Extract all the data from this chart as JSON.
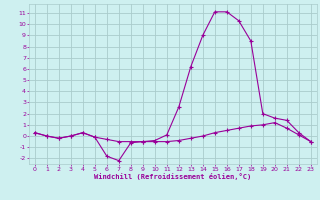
{
  "xlabel": "Windchill (Refroidissement éolien,°C)",
  "background_color": "#cef0f0",
  "grid_color": "#aacccc",
  "line_color": "#990099",
  "xlim": [
    -0.5,
    23.5
  ],
  "ylim": [
    -2.5,
    11.8
  ],
  "yticks": [
    -2,
    -1,
    0,
    1,
    2,
    3,
    4,
    5,
    6,
    7,
    8,
    9,
    10,
    11
  ],
  "xticks": [
    0,
    1,
    2,
    3,
    4,
    5,
    6,
    7,
    8,
    9,
    10,
    11,
    12,
    13,
    14,
    15,
    16,
    17,
    18,
    19,
    20,
    21,
    22,
    23
  ],
  "line1_x": [
    0,
    1,
    2,
    3,
    4,
    5,
    6,
    7,
    8,
    9,
    10,
    11,
    12,
    13,
    14,
    15,
    16,
    17,
    18,
    19,
    20,
    21,
    22,
    23
  ],
  "line1_y": [
    0.3,
    0.0,
    -0.2,
    0.0,
    0.3,
    -0.1,
    -1.8,
    -2.2,
    -0.6,
    -0.5,
    -0.4,
    0.1,
    2.6,
    6.2,
    9.0,
    11.1,
    11.1,
    10.3,
    8.5,
    2.0,
    1.6,
    1.4,
    0.3,
    -0.5
  ],
  "line2_x": [
    0,
    1,
    2,
    3,
    4,
    5,
    6,
    7,
    8,
    9,
    10,
    11,
    12,
    13,
    14,
    15,
    16,
    17,
    18,
    19,
    20,
    21,
    22,
    23
  ],
  "line2_y": [
    0.3,
    0.0,
    -0.2,
    0.0,
    0.3,
    -0.1,
    -0.3,
    -0.5,
    -0.5,
    -0.5,
    -0.5,
    -0.5,
    -0.4,
    -0.2,
    0.0,
    0.3,
    0.5,
    0.7,
    0.9,
    1.0,
    1.2,
    0.7,
    0.1,
    -0.5
  ]
}
